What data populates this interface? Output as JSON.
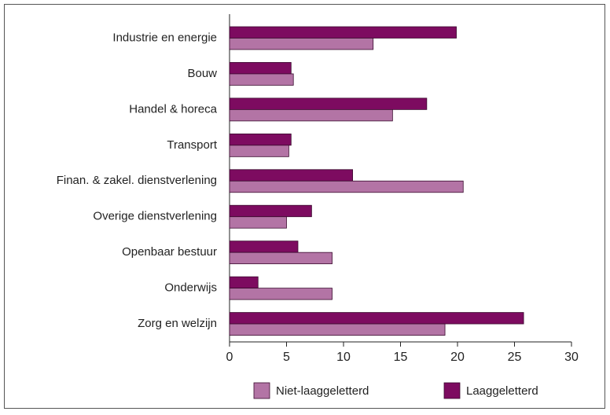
{
  "chart_data": {
    "type": "bar",
    "orientation": "horizontal",
    "categories": [
      "Industrie en energie",
      "Bouw",
      "Handel & horeca",
      "Transport",
      "Finan. & zakel. dienstverlening",
      "Overige dienstverlening",
      "Openbaar bestuur",
      "Onderwijs",
      "Zorg en welzijn"
    ],
    "series": [
      {
        "name": "Niet-laaggeletterd",
        "color": "#b374a5",
        "values": [
          12.6,
          5.6,
          14.3,
          5.2,
          20.5,
          5.0,
          9.0,
          9.0,
          18.9
        ]
      },
      {
        "name": "Laaggeletterd",
        "color": "#7d0b60",
        "values": [
          19.9,
          5.4,
          17.3,
          5.4,
          10.8,
          7.2,
          6.0,
          2.5,
          25.8
        ]
      }
    ],
    "xlim": [
      0,
      30
    ],
    "xticks": [
      0,
      5,
      10,
      15,
      20,
      25,
      30
    ],
    "legend": "bottom"
  }
}
